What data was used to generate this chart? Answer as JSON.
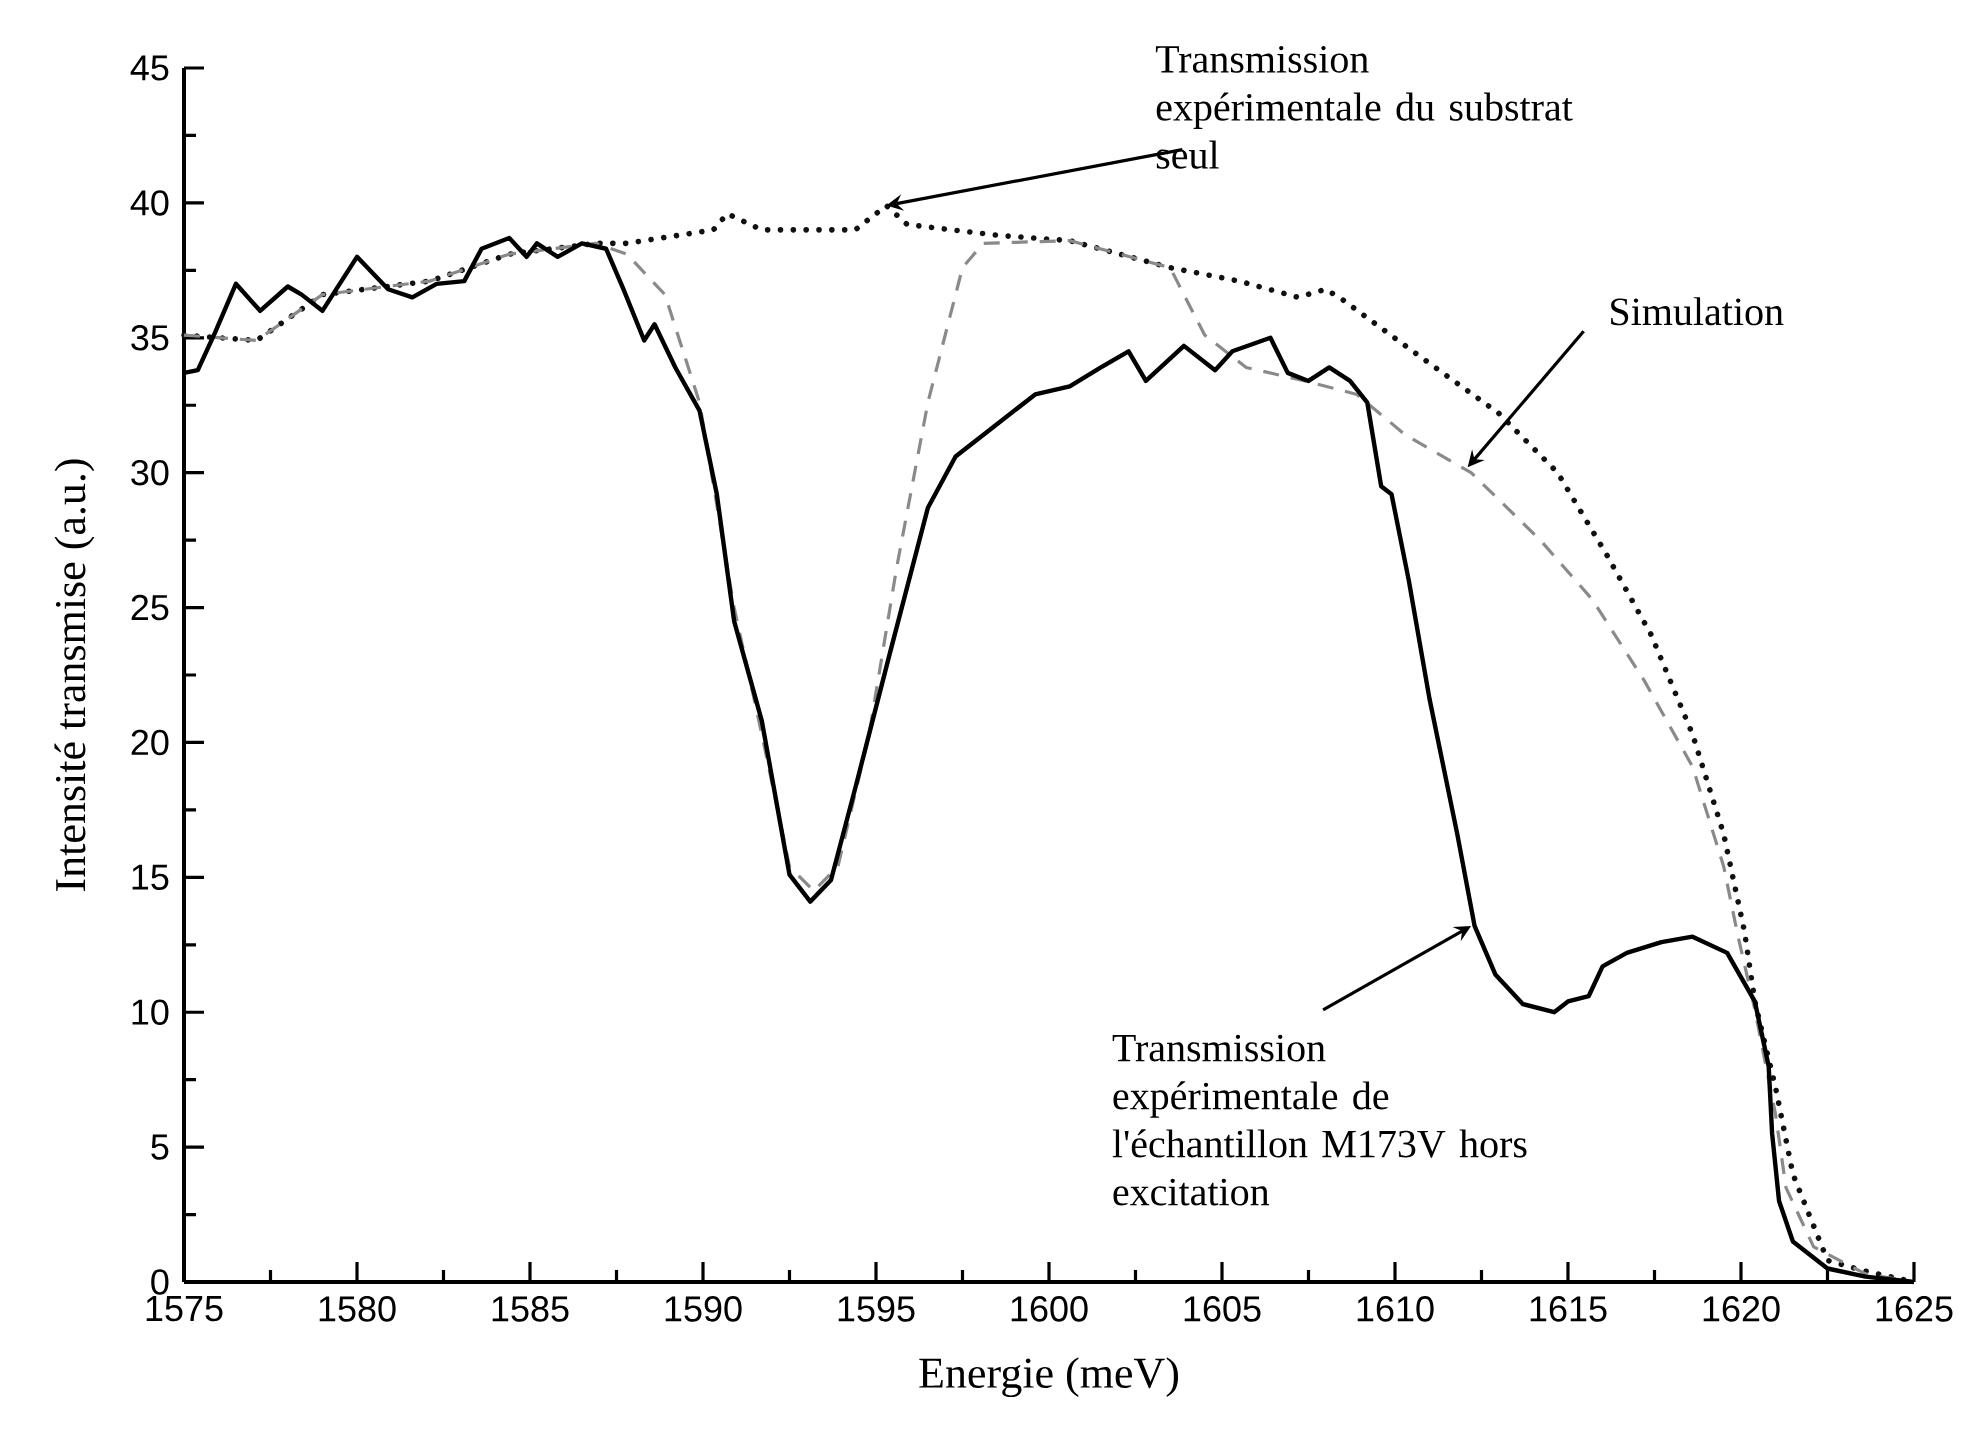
{
  "chart_data": {
    "type": "line",
    "xlabel": "Energie (meV)",
    "ylabel": "Intensité transmise (a.u.)",
    "xlim": [
      1575,
      1625
    ],
    "xticks": [
      1575,
      1580,
      1585,
      1590,
      1595,
      1600,
      1605,
      1610,
      1615,
      1620,
      1625
    ],
    "ylim": [
      0,
      45
    ],
    "yticks": [
      0,
      5,
      10,
      15,
      20,
      25,
      30,
      35,
      40,
      45
    ],
    "grid": false,
    "marker": "none",
    "series": [
      {
        "color": "#111111",
        "line_style": "dotted",
        "x": [
          1575.0,
          1577.1,
          1579.0,
          1582.1,
          1584.4,
          1586.9,
          1587.8,
          1590.3,
          1590.7,
          1591.7,
          1594.4,
          1595.3,
          1595.9,
          1598.5,
          1600.6,
          1603.5,
          1605.5,
          1607.2,
          1608.0,
          1608.5,
          1610.3,
          1613.0,
          1614.7,
          1616.1,
          1617.4,
          1618.6,
          1619.5,
          1620.1,
          1620.4,
          1621.0,
          1621.5,
          1622.5,
          1623.6,
          1625.0
        ],
        "values": [
          35.1,
          34.9,
          36.6,
          37.1,
          38.1,
          38.5,
          38.5,
          39.0,
          39.6,
          39.0,
          39.0,
          39.9,
          39.2,
          38.8,
          38.6,
          37.6,
          37.1,
          36.5,
          36.8,
          36.4,
          34.7,
          32.2,
          30.0,
          27.0,
          24.0,
          20.3,
          16.6,
          13.0,
          10.4,
          7.2,
          4.0,
          0.8,
          0.4,
          0.0
        ]
      },
      {
        "color": "#8a8a8a",
        "line_style": "dashed",
        "x": [
          1575.0,
          1577.1,
          1579.0,
          1582.1,
          1584.4,
          1586.9,
          1587.8,
          1588.9,
          1589.9,
          1590.9,
          1591.7,
          1592.5,
          1593.2,
          1593.9,
          1594.8,
          1595.6,
          1596.5,
          1597.5,
          1598.1,
          1600.6,
          1603.5,
          1603.7,
          1604.5,
          1605.7,
          1607.4,
          1608.9,
          1610.3,
          1612.2,
          1614.2,
          1615.7,
          1617.2,
          1618.6,
          1619.5,
          1619.9,
          1620.4,
          1621.0,
          1621.3,
          1622.1,
          1623.6,
          1625.0
        ],
        "values": [
          35.1,
          34.9,
          36.6,
          37.1,
          38.1,
          38.5,
          38.1,
          36.6,
          32.6,
          25.0,
          20.3,
          15.4,
          14.5,
          15.4,
          20.3,
          26.5,
          32.6,
          37.6,
          38.5,
          38.6,
          37.6,
          37.1,
          35.1,
          33.9,
          33.4,
          32.9,
          31.4,
          30.0,
          27.5,
          25.3,
          22.3,
          19.1,
          15.4,
          12.9,
          10.1,
          6.2,
          3.5,
          1.3,
          0.3,
          0.0
        ]
      },
      {
        "color": "#000000",
        "line_style": "solid",
        "x": [
          1575.0,
          1575.4,
          1575.9,
          1576.5,
          1577.2,
          1578.0,
          1578.4,
          1579.0,
          1580.0,
          1580.9,
          1581.6,
          1582.3,
          1583.1,
          1583.6,
          1584.4,
          1584.9,
          1585.2,
          1585.8,
          1586.5,
          1587.2,
          1587.7,
          1588.3,
          1588.6,
          1589.2,
          1589.9,
          1590.4,
          1590.9,
          1591.7,
          1592.5,
          1593.1,
          1593.7,
          1594.4,
          1595.4,
          1596.5,
          1597.3,
          1598.3,
          1599.6,
          1600.6,
          1601.5,
          1602.3,
          1602.8,
          1603.9,
          1604.8,
          1605.3,
          1606.4,
          1606.9,
          1607.5,
          1608.1,
          1608.7,
          1609.2,
          1609.6,
          1609.9,
          1610.4,
          1611.0,
          1611.8,
          1612.3,
          1612.9,
          1613.7,
          1614.6,
          1615.0,
          1615.6,
          1616.0,
          1616.7,
          1617.7,
          1618.6,
          1619.6,
          1620.4,
          1620.8,
          1620.9,
          1621.1,
          1621.5,
          1622.5,
          1623.6,
          1625.0
        ],
        "values": [
          33.7,
          33.8,
          35.2,
          37.0,
          36.0,
          36.9,
          36.6,
          36.0,
          38.0,
          36.8,
          36.5,
          37.0,
          37.1,
          38.3,
          38.7,
          38.0,
          38.5,
          38.0,
          38.5,
          38.3,
          36.8,
          34.9,
          35.5,
          33.9,
          32.3,
          29.2,
          24.5,
          20.8,
          15.1,
          14.1,
          14.9,
          18.3,
          23.3,
          28.7,
          30.6,
          31.6,
          32.9,
          33.2,
          33.9,
          34.5,
          33.4,
          34.7,
          33.8,
          34.5,
          35.0,
          33.7,
          33.4,
          33.9,
          33.4,
          32.6,
          29.5,
          29.2,
          26.0,
          21.6,
          16.6,
          13.2,
          11.4,
          10.3,
          10.0,
          10.4,
          10.6,
          11.7,
          12.2,
          12.6,
          12.8,
          12.2,
          10.4,
          8.0,
          5.5,
          3.0,
          1.5,
          0.5,
          0.2,
          0.0
        ]
      }
    ],
    "annotations": [
      {
        "text": "Transmission expérimentale du substrat seul",
        "x": 1595.3,
        "y": 39.9
      },
      {
        "text": "Simulation",
        "x": 1612.1,
        "y": 30.2
      },
      {
        "text": "Transmission expérimentale de l'échantillon M173V hors excitation",
        "x": 1612.2,
        "y": 13.2
      }
    ]
  }
}
